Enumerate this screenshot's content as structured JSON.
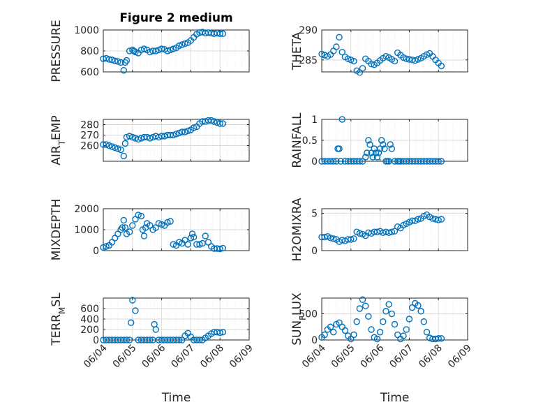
{
  "figure_title": "Figure 2 medium",
  "x_axis": {
    "label": "Time",
    "range": [
      "06/04",
      "06/09"
    ],
    "ticks": [
      "06/04",
      "06/05",
      "06/06",
      "06/07",
      "06/08",
      "06/09"
    ]
  },
  "colors": {
    "marker": "#0072BD",
    "axis": "#262626",
    "grid": "#d9d9d9"
  },
  "chart_data": [
    {
      "type": "scatter",
      "ylabel": "PRESSURE",
      "ylabel_sub": null,
      "title": "Figure 2 medium",
      "ylim": [
        600,
        1000
      ],
      "yticks": [
        600,
        800,
        1000
      ],
      "ytick_labels": [
        "600",
        "800",
        "1000"
      ],
      "grid": true,
      "x": [
        0.0,
        0.1,
        0.2,
        0.3,
        0.4,
        0.5,
        0.6,
        0.7,
        0.75,
        0.8,
        0.9,
        1.0,
        1.05,
        1.1,
        1.2,
        1.3,
        1.4,
        1.5,
        1.6,
        1.7,
        1.8,
        1.9,
        2.0,
        2.1,
        2.2,
        2.3,
        2.4,
        2.5,
        2.6,
        2.7,
        2.8,
        2.9,
        3.0,
        3.1,
        3.2,
        3.3,
        3.4,
        3.5,
        3.6,
        3.7,
        3.8,
        3.9,
        4.0,
        4.1
      ],
      "y": [
        725,
        730,
        720,
        715,
        705,
        700,
        690,
        615,
        690,
        710,
        800,
        810,
        800,
        790,
        780,
        810,
        820,
        810,
        790,
        800,
        800,
        810,
        820,
        815,
        800,
        810,
        820,
        830,
        850,
        860,
        870,
        880,
        900,
        930,
        960,
        975,
        980,
        970,
        975,
        970,
        965,
        970,
        965,
        965
      ]
    },
    {
      "type": "scatter",
      "ylabel": "THETA",
      "ylabel_sub": null,
      "ylim": [
        283,
        290
      ],
      "yticks": [
        285,
        290
      ],
      "ytick_labels": [
        "285",
        "290"
      ],
      "grid": true,
      "x": [
        0.0,
        0.1,
        0.2,
        0.3,
        0.4,
        0.5,
        0.6,
        0.7,
        0.8,
        0.9,
        1.0,
        1.1,
        1.2,
        1.3,
        1.4,
        1.5,
        1.6,
        1.7,
        1.8,
        1.9,
        2.0,
        2.1,
        2.2,
        2.3,
        2.4,
        2.5,
        2.6,
        2.7,
        2.8,
        2.9,
        3.0,
        3.1,
        3.2,
        3.3,
        3.4,
        3.5,
        3.6,
        3.7,
        3.8,
        3.9,
        4.0,
        4.1
      ],
      "y": [
        286,
        285.8,
        285.6,
        285.9,
        286.5,
        287.2,
        288.8,
        286.3,
        285.5,
        285.2,
        285.0,
        284.8,
        283.2,
        282.9,
        283.6,
        285.2,
        284.8,
        284.3,
        284.2,
        284.5,
        284.9,
        285.3,
        285.6,
        285.4,
        285.1,
        284.8,
        286.2,
        285.8,
        285.4,
        285.2,
        285.1,
        285.0,
        284.9,
        285.1,
        285.3,
        285.6,
        285.9,
        286.1,
        285.6,
        285.0,
        284.5,
        284.0
      ]
    },
    {
      "type": "scatter",
      "ylabel": "AIR",
      "ylabel_sub": "T",
      "ylabel_rest": "EMP",
      "ylim": [
        245,
        285
      ],
      "yticks": [
        260,
        270,
        280
      ],
      "ytick_labels": [
        "260",
        "270",
        "280"
      ],
      "grid": true,
      "x": [
        0.0,
        0.1,
        0.2,
        0.3,
        0.4,
        0.5,
        0.6,
        0.7,
        0.75,
        0.8,
        0.9,
        1.0,
        1.1,
        1.2,
        1.3,
        1.4,
        1.5,
        1.6,
        1.7,
        1.8,
        1.9,
        2.0,
        2.1,
        2.2,
        2.3,
        2.4,
        2.5,
        2.6,
        2.7,
        2.8,
        2.9,
        3.0,
        3.1,
        3.2,
        3.3,
        3.4,
        3.5,
        3.6,
        3.7,
        3.8,
        3.9,
        4.0,
        4.1
      ],
      "y": [
        261,
        261,
        260,
        259,
        258,
        257,
        256,
        250,
        262,
        268,
        269,
        268,
        267,
        266,
        267,
        268,
        268,
        267,
        268,
        269,
        268,
        269,
        269,
        270,
        270,
        270,
        271,
        272,
        273,
        273,
        274,
        275,
        277,
        278,
        281,
        283,
        283,
        284,
        284,
        283,
        282,
        281,
        281
      ]
    },
    {
      "type": "scatter",
      "ylabel": "RAINFALL",
      "ylabel_sub": null,
      "ylim": [
        0,
        1
      ],
      "yticks": [
        0,
        0.5,
        1
      ],
      "ytick_labels": [
        "0",
        "0.5",
        "1"
      ],
      "grid": true,
      "x": [
        0.0,
        0.1,
        0.2,
        0.3,
        0.4,
        0.5,
        0.55,
        0.6,
        0.65,
        0.7,
        0.8,
        0.9,
        1.0,
        1.1,
        1.2,
        1.3,
        1.4,
        1.5,
        1.55,
        1.6,
        1.65,
        1.7,
        1.75,
        1.8,
        1.85,
        1.9,
        1.95,
        2.0,
        2.05,
        2.1,
        2.15,
        2.2,
        2.25,
        2.3,
        2.35,
        2.4,
        2.5,
        2.6,
        2.65,
        2.7,
        2.8,
        2.9,
        3.0,
        3.1,
        3.2,
        3.3,
        3.4,
        3.5,
        3.6,
        3.7,
        3.8,
        3.9,
        4.0,
        4.1
      ],
      "y": [
        0,
        0,
        0,
        0,
        0,
        0,
        0.3,
        0.3,
        0,
        1.0,
        0,
        0,
        0,
        0,
        0,
        0,
        0,
        0.1,
        0.2,
        0.5,
        0.4,
        0.2,
        0.1,
        0.3,
        0.2,
        0.1,
        0.2,
        0.3,
        0.5,
        0.4,
        0.3,
        0,
        0,
        0,
        0.4,
        0.3,
        0,
        0,
        0,
        0,
        0,
        0,
        0,
        0,
        0,
        0,
        0,
        0,
        0,
        0,
        0,
        0,
        0,
        0
      ]
    },
    {
      "type": "scatter",
      "ylabel": "MIXDEPTH",
      "ylabel_sub": null,
      "ylim": [
        0,
        2000
      ],
      "yticks": [
        0,
        1000,
        2000
      ],
      "ytick_labels": [
        "0",
        "1000",
        "2000"
      ],
      "grid": true,
      "x": [
        0.0,
        0.1,
        0.2,
        0.3,
        0.4,
        0.5,
        0.6,
        0.65,
        0.7,
        0.75,
        0.8,
        0.9,
        1.0,
        1.1,
        1.2,
        1.3,
        1.35,
        1.4,
        1.45,
        1.5,
        1.6,
        1.7,
        1.8,
        1.9,
        2.0,
        2.1,
        2.2,
        2.3,
        2.4,
        2.5,
        2.6,
        2.7,
        2.8,
        2.9,
        3.0,
        3.05,
        3.1,
        3.2,
        3.3,
        3.4,
        3.5,
        3.6,
        3.7,
        3.8,
        3.9,
        4.0,
        4.1
      ],
      "y": [
        150,
        200,
        250,
        400,
        600,
        800,
        1000,
        1100,
        1450,
        1100,
        800,
        900,
        1200,
        1500,
        1700,
        1650,
        1000,
        700,
        1100,
        1300,
        1200,
        1000,
        1100,
        1300,
        1250,
        1200,
        1350,
        1400,
        300,
        250,
        400,
        350,
        500,
        300,
        600,
        800,
        650,
        300,
        300,
        350,
        700,
        400,
        200,
        100,
        100,
        80,
        120
      ]
    },
    {
      "type": "scatter",
      "ylabel": "H2OMIXRA",
      "ylabel_sub": null,
      "ylim": [
        0,
        5.6
      ],
      "yticks": [
        0,
        5
      ],
      "ytick_labels": [
        "0",
        "5"
      ],
      "grid": true,
      "x": [
        0.0,
        0.1,
        0.2,
        0.3,
        0.4,
        0.5,
        0.6,
        0.7,
        0.8,
        0.9,
        1.0,
        1.1,
        1.2,
        1.3,
        1.4,
        1.5,
        1.6,
        1.7,
        1.8,
        1.9,
        2.0,
        2.1,
        2.2,
        2.3,
        2.4,
        2.5,
        2.6,
        2.7,
        2.8,
        2.9,
        3.0,
        3.1,
        3.2,
        3.3,
        3.4,
        3.5,
        3.6,
        3.7,
        3.8,
        3.9,
        4.0,
        4.1
      ],
      "y": [
        1.8,
        1.8,
        1.9,
        1.7,
        1.6,
        1.5,
        1.2,
        1.4,
        1.3,
        1.5,
        1.5,
        1.6,
        2.5,
        2.3,
        2.2,
        2.0,
        2.4,
        2.3,
        2.5,
        2.5,
        2.6,
        2.4,
        2.5,
        2.4,
        2.5,
        2.6,
        3.2,
        3.0,
        3.4,
        3.6,
        3.8,
        4.0,
        4.0,
        4.2,
        4.3,
        4.6,
        4.8,
        4.5,
        4.3,
        4.2,
        4.1,
        4.2
      ]
    },
    {
      "type": "scatter",
      "ylabel": "TERR",
      "ylabel_sub": "M",
      "ylabel_rest": "SL",
      "ylim": [
        0,
        800
      ],
      "yticks": [
        0,
        200,
        400,
        600
      ],
      "ytick_labels": [
        "0",
        "200",
        "400",
        "600"
      ],
      "grid": true,
      "x": [
        0.0,
        0.1,
        0.2,
        0.3,
        0.4,
        0.5,
        0.6,
        0.7,
        0.8,
        0.9,
        0.95,
        1.0,
        1.1,
        1.2,
        1.3,
        1.4,
        1.5,
        1.6,
        1.7,
        1.75,
        1.8,
        1.9,
        2.0,
        2.1,
        2.2,
        2.3,
        2.4,
        2.5,
        2.6,
        2.7,
        2.8,
        2.9,
        3.0,
        3.1,
        3.2,
        3.3,
        3.4,
        3.5,
        3.6,
        3.7,
        3.8,
        3.9,
        4.0,
        4.1
      ],
      "y": [
        0,
        0,
        0,
        0,
        0,
        0,
        0,
        0,
        0,
        0,
        330,
        760,
        560,
        0,
        0,
        0,
        0,
        0,
        0,
        300,
        200,
        0,
        0,
        0,
        0,
        0,
        0,
        0,
        0,
        0,
        80,
        130,
        60,
        0,
        0,
        0,
        0,
        40,
        80,
        120,
        150,
        150,
        140,
        150
      ]
    },
    {
      "type": "scatter",
      "ylabel": "SUN",
      "ylabel_sub": "F",
      "ylabel_rest": "LUX",
      "ylim": [
        0,
        800
      ],
      "yticks": [
        0,
        500
      ],
      "ytick_labels": [
        "0",
        "500"
      ],
      "grid": true,
      "x": [
        0.0,
        0.1,
        0.2,
        0.3,
        0.4,
        0.5,
        0.6,
        0.7,
        0.8,
        0.9,
        1.0,
        1.1,
        1.2,
        1.3,
        1.4,
        1.5,
        1.6,
        1.7,
        1.8,
        1.9,
        2.0,
        2.1,
        2.2,
        2.3,
        2.4,
        2.5,
        2.6,
        2.7,
        2.8,
        2.9,
        3.0,
        3.1,
        3.2,
        3.3,
        3.4,
        3.5,
        3.6,
        3.7,
        3.8,
        3.9,
        4.0,
        4.1
      ],
      "y": [
        50,
        100,
        200,
        250,
        150,
        300,
        330,
        250,
        180,
        80,
        20,
        100,
        350,
        600,
        770,
        650,
        450,
        200,
        50,
        20,
        150,
        350,
        550,
        680,
        500,
        300,
        100,
        20,
        80,
        200,
        400,
        620,
        700,
        660,
        550,
        350,
        150,
        40,
        20,
        20,
        30,
        30
      ]
    }
  ]
}
